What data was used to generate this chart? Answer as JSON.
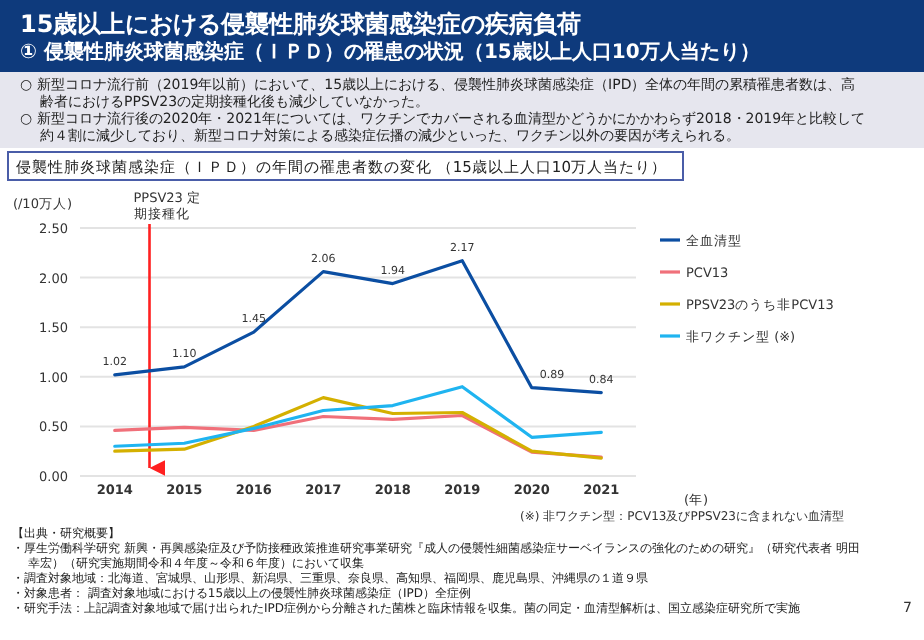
{
  "chart_data": {
    "type": "line",
    "title": "15歳以上における侵襲性肺炎球菌感染症の疾病負荷",
    "subtitle": "① 侵襲性肺炎球菌感染症（ＩＰＤ）の罹患の状況（15歳以上人口10万人当たり）",
    "annotations": [
      "○ 新型コロナ流行前（2019年以前）において、15歳以上における、侵襲性肺炎球菌感染症（IPD）全体の年間の累積罹患者数は、高齢者におけるPPSV23の定期接種化後も減少していなかった。",
      "○ 新型コロナ流行後の2020年・2021年については、ワクチンでカバーされる血清型かどうかにかかわらず2018・2019年と比較して約４割に減少しており、新型コロナ対策による感染症伝播の減少といった、ワクチン以外の要因が考えられる。",
      "侵襲性肺炎球菌感染症（ＩＰＤ）の年間の罹患者数の変化 （15歳以上人口10万人当たり）",
      "(※) 非ワクチン型：PCV13及びPPSV23に含まれない血清型",
      "【出典・研究概要】",
      "・厚生労働科学研究 新興・再興感染症及び予防接種政策推進研究事業研究『成人の侵襲性細菌感染症サーベイランスの強化のための研究』（研究代表者 明田幸宏）（研究実施期間令和４年度～令和６年度）において収集",
      "・調査対象地域：北海道、宮城県、山形県、新潟県、三重県、奈良県、高知県、福岡県、鹿児島県、沖縄県の１道９県",
      "・対象患者： 調査対象地域における15歳以上の侵襲性肺炎球菌感染症（IPD）全症例",
      "・研究手法：上記調査対象地域で届け出られたIPD症例から分離された菌株と臨床情報を収集。菌の同定・血清型解析は、国立感染症研究所で実施",
      "7"
    ],
    "ylabel": "(/10万人)",
    "xlabel": "(年)",
    "x": [
      2014,
      2015,
      2016,
      2017,
      2018,
      2019,
      2020,
      2021
    ],
    "xlim": [
      2013.5,
      2021.5
    ],
    "xticks": [
      2014,
      2015,
      2016,
      2017,
      2018,
      2019,
      2020,
      2021
    ],
    "ylim": [
      0,
      2.5
    ],
    "yticks": [
      {
        "value": 0,
        "label": "0.00"
      },
      {
        "value": 0.5,
        "label": "0.50"
      },
      {
        "value": 1,
        "label": "1.00"
      },
      {
        "value": 1.5,
        "label": "1.50"
      },
      {
        "value": 2,
        "label": "2.00"
      },
      {
        "value": 2.5,
        "label": "2.50"
      }
    ],
    "grid": "y",
    "legend": "right",
    "marker": "none",
    "line_style": "solid",
    "ref_lines": [
      {
        "axis": "x",
        "value": 2014.5,
        "label": "PPSV23 定期接種化",
        "color": "#ff2020"
      }
    ],
    "series": [
      {
        "name": "全血清型",
        "color": "#0b4ea2",
        "values": [
          1.02,
          1.1,
          1.45,
          2.06,
          1.94,
          2.17,
          0.89,
          0.84
        ],
        "value_labels": [
          "1.02",
          "1.10",
          "1.45",
          "2.06",
          "1.94",
          "2.17",
          "0.89",
          "0.84"
        ]
      },
      {
        "name": "PCV13",
        "color": "#f0707a",
        "values": [
          0.46,
          0.49,
          0.46,
          0.6,
          0.57,
          0.61,
          0.24,
          0.19
        ]
      },
      {
        "name": "PPSV23のうち非PCV13",
        "color": "#d4b000",
        "values": [
          0.25,
          0.27,
          0.5,
          0.79,
          0.63,
          0.64,
          0.25,
          0.18
        ]
      },
      {
        "name": "非ワクチン型 (※)",
        "color": "#1fb4f0",
        "values": [
          0.3,
          0.33,
          0.48,
          0.66,
          0.71,
          0.9,
          0.39,
          0.44
        ]
      }
    ]
  }
}
